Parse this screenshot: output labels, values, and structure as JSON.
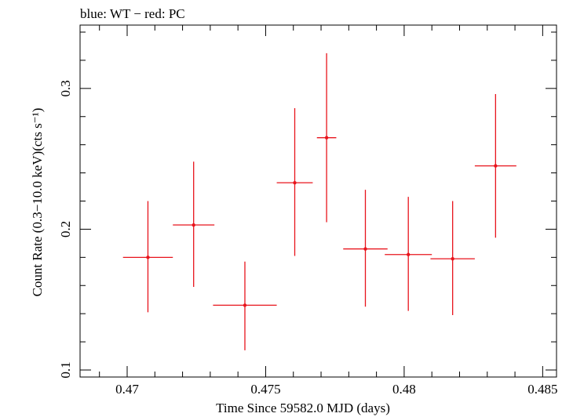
{
  "chart_data": {
    "type": "scatter",
    "title": "blue: WT − red: PC",
    "xlabel": "Time Since 59582.0 MJD (days)",
    "ylabel": "Count Rate (0.3−10.0 keV)(cts s⁻¹)",
    "xlim": [
      0.4683,
      0.4855
    ],
    "ylim": [
      0.095,
      0.345
    ],
    "x_ticks": [
      0.47,
      0.475,
      0.48,
      0.485
    ],
    "x_tick_labels": [
      "0.47",
      "0.475",
      "0.48",
      "0.485"
    ],
    "y_ticks": [
      0.1,
      0.2,
      0.3
    ],
    "y_tick_labels": [
      "0.1",
      "0.2",
      "0.3"
    ],
    "grid": false,
    "series": [
      {
        "color": "#e8141c",
        "points": [
          {
            "x": 0.47075,
            "y": 0.18,
            "xerr": 0.0009,
            "ylo": 0.141,
            "yhi": 0.22
          },
          {
            "x": 0.4724,
            "y": 0.203,
            "xerr": 0.00075,
            "ylo": 0.159,
            "yhi": 0.248
          },
          {
            "x": 0.47425,
            "y": 0.146,
            "xerr": 0.00115,
            "ylo": 0.114,
            "yhi": 0.177
          },
          {
            "x": 0.47605,
            "y": 0.233,
            "xerr": 0.00065,
            "ylo": 0.181,
            "yhi": 0.286
          },
          {
            "x": 0.4772,
            "y": 0.265,
            "xerr": 0.00035,
            "ylo": 0.205,
            "yhi": 0.325
          },
          {
            "x": 0.4786,
            "y": 0.186,
            "xerr": 0.0008,
            "ylo": 0.145,
            "yhi": 0.228
          },
          {
            "x": 0.48015,
            "y": 0.182,
            "xerr": 0.00085,
            "ylo": 0.142,
            "yhi": 0.223
          },
          {
            "x": 0.48175,
            "y": 0.179,
            "xerr": 0.0008,
            "ylo": 0.139,
            "yhi": 0.22
          },
          {
            "x": 0.4833,
            "y": 0.245,
            "xerr": 0.00075,
            "ylo": 0.194,
            "yhi": 0.296
          }
        ]
      }
    ]
  }
}
